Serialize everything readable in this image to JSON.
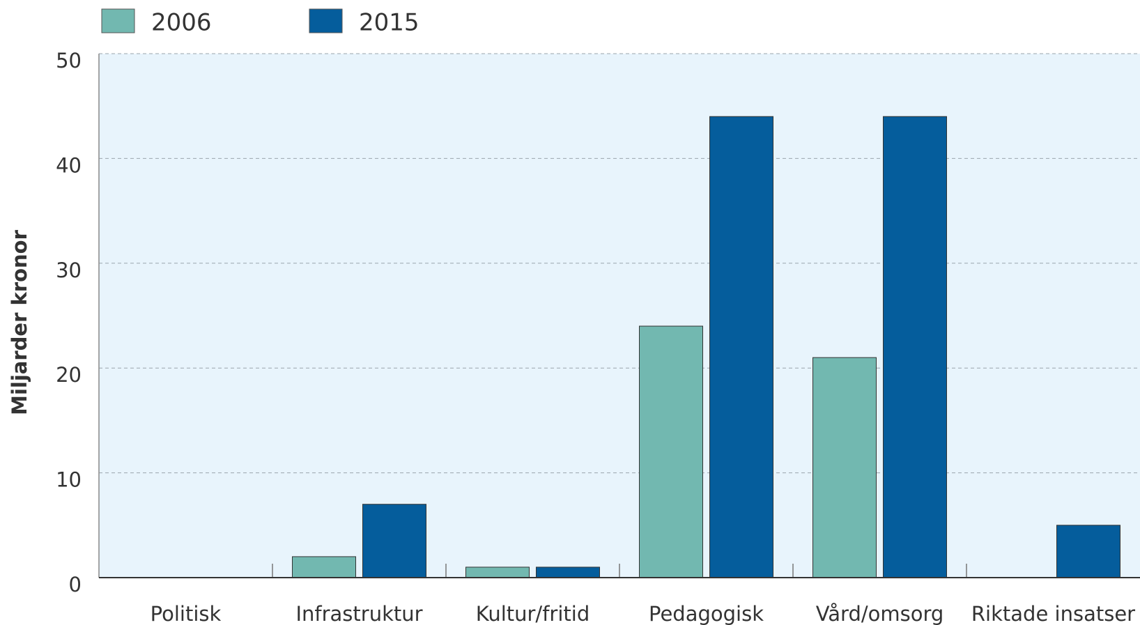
{
  "chart_data": {
    "type": "bar",
    "y_label": "Miljarder kronor",
    "categories": [
      "Politisk",
      "Infrastruktur",
      "Kultur/fritid",
      "Pedagogisk",
      "Vård/omsorg",
      "Riktade insatser"
    ],
    "series": [
      {
        "name": "2006",
        "color": "#72b8b0",
        "values": [
          0,
          2,
          1,
          24,
          21,
          0
        ]
      },
      {
        "name": "2015",
        "color": "#055d9c",
        "values": [
          0,
          7,
          1,
          44,
          44,
          5
        ]
      }
    ],
    "ylim": [
      0,
      50
    ],
    "yticks": [
      0,
      10,
      20,
      30,
      40,
      50
    ],
    "grid": true
  }
}
